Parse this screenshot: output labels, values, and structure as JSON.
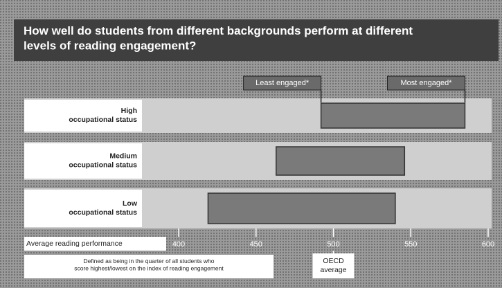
{
  "chart_data": {
    "type": "range_bar",
    "title": "How well do students from different backgrounds perform at different\nlevels of reading engagement?",
    "categories": [
      "High\noccupational status",
      "Medium\noccupational status",
      "Low\noccupational status"
    ],
    "series": [
      {
        "name": "Least engaged*",
        "color": "#6a6a6a",
        "values": [
          492,
          463,
          419
        ]
      },
      {
        "name": "Most engaged*",
        "color": "#6a6a6a",
        "values": [
          585,
          546,
          540
        ]
      }
    ],
    "bar_color": "#7a7a7a",
    "xlabel": "Average reading performance",
    "xlim": [
      400,
      600
    ],
    "xticks": [
      400,
      450,
      500,
      550,
      600
    ],
    "reference_line": {
      "value": 500,
      "label": "OECD\naverage"
    },
    "footnote": "Defined as being in the quarter of all students who\nscore highest/lowest on the index of reading engagement"
  }
}
